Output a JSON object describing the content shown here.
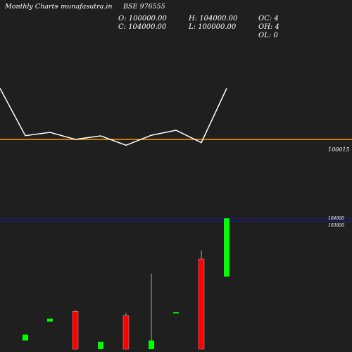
{
  "header": {
    "title": "Monthly Charts",
    "site": "- munafasutra.in",
    "symbol": "BSE 976555"
  },
  "ohlc": {
    "open": "O: 100000.00",
    "high": "H: 104000.00",
    "close": "C: 104000.00",
    "low": "L: 100000.00",
    "oc": "OC: 4",
    "oh": "OH: 4",
    "ol": "OL: 0"
  },
  "colors": {
    "background": "#1f1f1f",
    "line": "#ffffff",
    "reference_line": "#ff9900",
    "up": "#00ff00",
    "down": "#ff0000",
    "price_level": "#1e1e8c"
  },
  "chart_data": [
    {
      "type": "line",
      "title": "",
      "reference_value_label": "100015",
      "series": [
        {
          "values": [
            100250,
            100032,
            100047,
            100015,
            100031,
            99988,
            100034,
            100057,
            100000,
            100250
          ]
        }
      ],
      "reference_line": 100015,
      "ylim": [
        99950,
        100300
      ]
    },
    {
      "type": "candlestick",
      "price_labels": [
        "104000",
        "103800"
      ],
      "price_levels": [
        104000,
        103800
      ],
      "ylim": [
        95000,
        104200
      ],
      "candles": [
        {
          "dir": "up",
          "open": 95600,
          "close": 96000,
          "high": 96000,
          "low": 95600
        },
        {
          "dir": "up",
          "open": 96900,
          "close": 97100,
          "high": 97100,
          "low": 96900
        },
        {
          "dir": "down",
          "open": 97600,
          "close": 95000,
          "high": 97700,
          "low": 95000
        },
        {
          "dir": "up",
          "open": 95000,
          "close": 95500,
          "high": 95500,
          "low": 95000
        },
        {
          "dir": "down",
          "open": 97300,
          "close": 95000,
          "high": 97500,
          "low": 95000
        },
        {
          "dir": "up",
          "open": 95000,
          "close": 95600,
          "high": 100200,
          "low": 95000
        },
        {
          "dir": "up",
          "open": 97500,
          "close": 97550,
          "high": 97550,
          "low": 97500
        },
        {
          "dir": "down",
          "open": 101200,
          "close": 95000,
          "high": 101800,
          "low": 95000
        },
        {
          "dir": "up",
          "open": 100000,
          "close": 104000,
          "high": 104000,
          "low": 100000
        }
      ]
    }
  ]
}
